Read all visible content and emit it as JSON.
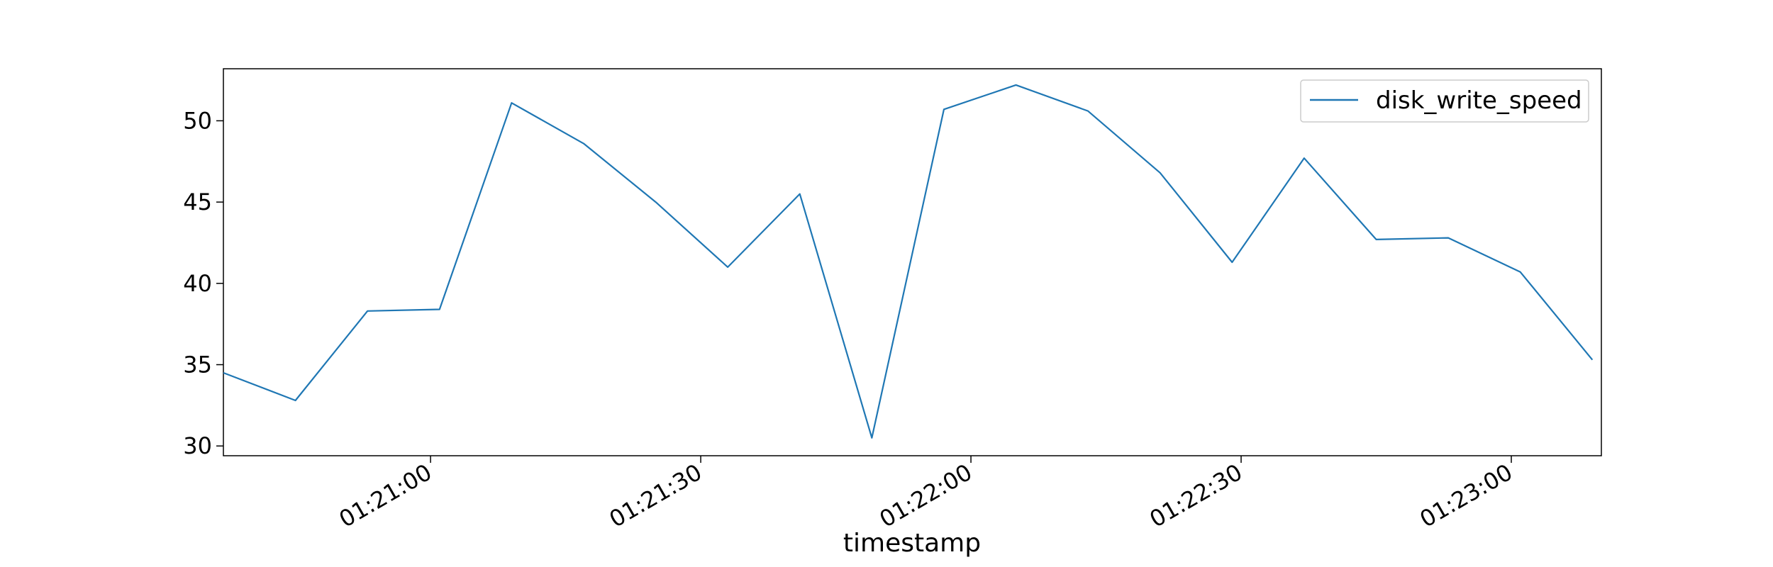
{
  "chart_data": {
    "type": "line",
    "title": "",
    "xlabel": "timestamp",
    "ylabel": "",
    "x": [
      "01:20:37",
      "01:20:45",
      "01:20:53",
      "01:21:01",
      "01:21:09",
      "01:21:17",
      "01:21:25",
      "01:21:33",
      "01:21:41",
      "01:21:49",
      "01:21:57",
      "01:22:05",
      "01:22:13",
      "01:22:21",
      "01:22:29",
      "01:22:37",
      "01:22:45",
      "01:22:53",
      "01:23:01",
      "01:23:09"
    ],
    "series": [
      {
        "name": "disk_write_speed",
        "color": "#1f77b4",
        "values": [
          34.5,
          32.8,
          38.3,
          38.4,
          51.1,
          48.6,
          45.0,
          41.0,
          45.5,
          30.5,
          50.7,
          52.2,
          50.6,
          46.8,
          41.3,
          47.7,
          42.7,
          42.8,
          40.7,
          35.3
        ]
      }
    ],
    "xlim": [
      "01:20:37",
      "01:23:10"
    ],
    "ylim": [
      29.4,
      53.2
    ],
    "x_ticks": [
      "01:21:00",
      "01:21:30",
      "01:22:00",
      "01:22:30",
      "01:23:00"
    ],
    "y_ticks": [
      30,
      35,
      40,
      45,
      50
    ],
    "grid": false,
    "legend_position": "upper right"
  }
}
